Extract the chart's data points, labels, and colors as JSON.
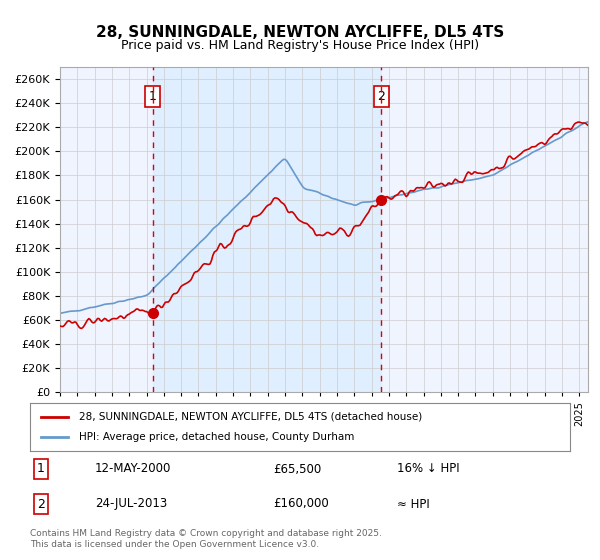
{
  "title": "28, SUNNINGDALE, NEWTON AYCLIFFE, DL5 4TS",
  "subtitle": "Price paid vs. HM Land Registry's House Price Index (HPI)",
  "legend_line1": "28, SUNNINGDALE, NEWTON AYCLIFFE, DL5 4TS (detached house)",
  "legend_line2": "HPI: Average price, detached house, County Durham",
  "annotation1_label": "1",
  "annotation1_date": "12-MAY-2000",
  "annotation1_price": "£65,500",
  "annotation1_hpi": "16% ↓ HPI",
  "annotation2_label": "2",
  "annotation2_date": "24-JUL-2013",
  "annotation2_price": "£160,000",
  "annotation2_hpi": "≈ HPI",
  "footer": "Contains HM Land Registry data © Crown copyright and database right 2025.\nThis data is licensed under the Open Government Licence v3.0.",
  "sale1_x": 2000.36,
  "sale1_y": 65500,
  "sale2_x": 2013.56,
  "sale2_y": 160000,
  "vline1_x": 2000.36,
  "vline2_x": 2013.56,
  "ylim": [
    0,
    270000
  ],
  "xlim_start": 1995,
  "xlim_end": 2025.5,
  "property_color": "#cc0000",
  "hpi_color": "#6699cc",
  "background_color": "#ddeeff",
  "plot_bg": "#f0f4ff",
  "grid_color": "#cccccc",
  "vline_color": "#dd0000"
}
